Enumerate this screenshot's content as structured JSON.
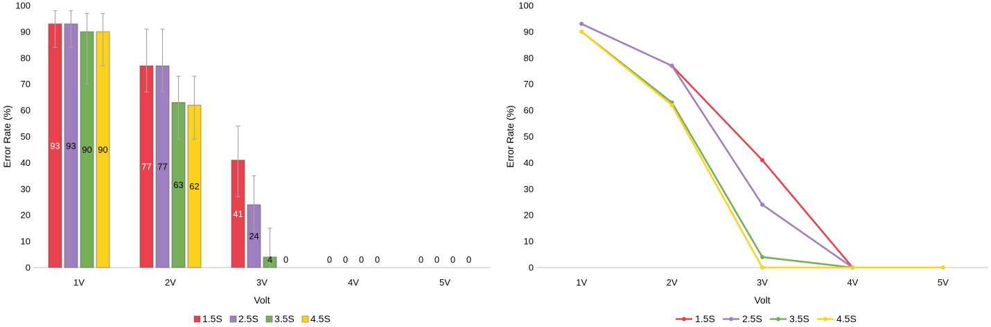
{
  "chart_data": [
    {
      "type": "bar",
      "xlabel": "Volt",
      "ylabel": "Error Rate (%)",
      "ylim": [
        0,
        100
      ],
      "yticks": [
        0,
        10,
        20,
        30,
        40,
        50,
        60,
        70,
        80,
        90,
        100
      ],
      "grid": false,
      "legend": "bottom",
      "categories": [
        "1V",
        "2V",
        "3V",
        "4V",
        "5V"
      ],
      "series": [
        {
          "name": "1.5S",
          "color": "#e8404c",
          "label_color": "#ffffff",
          "values": [
            93,
            77,
            41,
            0,
            0
          ],
          "error_low": [
            84,
            67,
            27,
            0,
            0
          ],
          "error_high": [
            98,
            91,
            54,
            0,
            0
          ]
        },
        {
          "name": "2.5S",
          "color": "#9e7fbf",
          "label_color": "#000000",
          "values": [
            93,
            77,
            24,
            0,
            0
          ],
          "error_low": [
            84,
            67,
            14,
            0,
            0
          ],
          "error_high": [
            98,
            91,
            35,
            0,
            0
          ]
        },
        {
          "name": "3.5S",
          "color": "#76ae5a",
          "label_color": "#000000",
          "values": [
            90,
            63,
            4,
            0,
            0
          ],
          "error_low": [
            70,
            49,
            0,
            0,
            0
          ],
          "error_high": [
            97,
            73,
            15,
            0,
            0
          ]
        },
        {
          "name": "4.5S",
          "color": "#fdd21d",
          "label_color": "#000000",
          "values": [
            90,
            62,
            0,
            0,
            0
          ],
          "error_low": [
            77,
            49,
            0,
            0,
            0
          ],
          "error_high": [
            97,
            73,
            0,
            0,
            0
          ]
        }
      ]
    },
    {
      "type": "line",
      "xlabel": "Volt",
      "ylabel": "Error Rate (%)",
      "ylim": [
        0,
        100
      ],
      "yticks": [
        0,
        10,
        20,
        30,
        40,
        50,
        60,
        70,
        80,
        90,
        100
      ],
      "grid": false,
      "legend": "bottom",
      "categories": [
        "1V",
        "2V",
        "3V",
        "4V",
        "5V"
      ],
      "series": [
        {
          "name": "1.5S",
          "color": "#e8404c",
          "values": [
            null,
            77,
            41,
            0,
            null
          ]
        },
        {
          "name": "2.5S",
          "color": "#9e7fbf",
          "values": [
            93,
            77,
            24,
            0,
            null
          ]
        },
        {
          "name": "3.5S",
          "color": "#76ae5a",
          "values": [
            90,
            63,
            4,
            0,
            null
          ]
        },
        {
          "name": "4.5S",
          "color": "#fdd21d",
          "values": [
            90,
            62,
            0,
            0,
            0
          ]
        }
      ]
    }
  ]
}
